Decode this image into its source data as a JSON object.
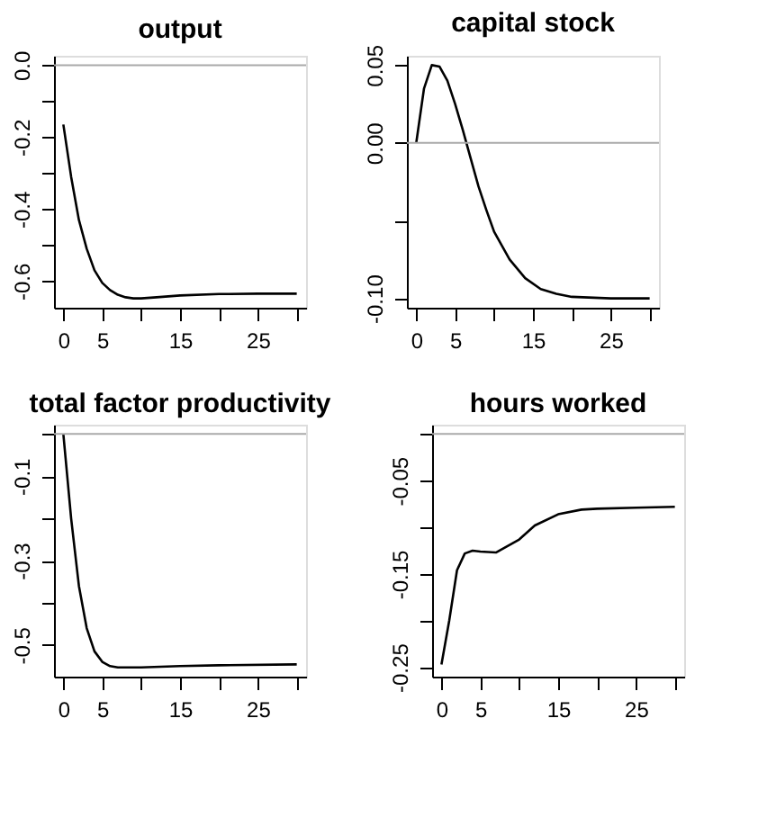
{
  "chart_data": [
    {
      "type": "line",
      "title": "output",
      "x": [
        0,
        1,
        2,
        3,
        4,
        5,
        6,
        7,
        8,
        9,
        10,
        12,
        15,
        20,
        25,
        30
      ],
      "series": [
        {
          "color": "#000000",
          "values": [
            -0.165,
            -0.31,
            -0.43,
            -0.51,
            -0.57,
            -0.605,
            -0.625,
            -0.638,
            -0.645,
            -0.648,
            -0.648,
            -0.645,
            -0.64,
            -0.636,
            -0.635,
            -0.635
          ]
        }
      ],
      "xlim": [
        -1.2,
        31.2
      ],
      "xticks": [
        0,
        5,
        {
          "value": 10,
          "label": null
        },
        15,
        {
          "value": 20,
          "label": null
        },
        25,
        {
          "value": 30,
          "label": null
        }
      ],
      "ylim": [
        -0.674,
        0.026
      ],
      "yticks": [
        {
          "value": -0.6,
          "label": "-0.6"
        },
        {
          "value": -0.5,
          "label": null
        },
        {
          "value": -0.4,
          "label": "-0.4"
        },
        {
          "value": -0.3,
          "label": null
        },
        {
          "value": -0.2,
          "label": "-0.2"
        },
        {
          "value": -0.1,
          "label": null
        },
        {
          "value": 0,
          "label": "0.0"
        }
      ],
      "ref_lines": [
        {
          "axis": "y",
          "value": 0,
          "color": "#aaaaaa"
        }
      ],
      "grid": false,
      "marker": "none",
      "line_style": "solid"
    },
    {
      "type": "line",
      "title": "capital stock",
      "x": [
        0,
        1,
        2,
        3,
        4,
        5,
        6,
        7,
        8,
        9,
        10,
        12,
        14,
        16,
        18,
        20,
        25,
        30
      ],
      "series": [
        {
          "color": "#000000",
          "values": [
            0,
            0.035,
            0.05,
            0.049,
            0.04,
            0.025,
            0.008,
            -0.01,
            -0.028,
            -0.043,
            -0.057,
            -0.075,
            -0.087,
            -0.094,
            -0.097,
            -0.099,
            -0.1,
            -0.1
          ]
        }
      ],
      "xlim": [
        -1.2,
        31.2
      ],
      "xticks": [
        0,
        5,
        {
          "value": 10,
          "label": null
        },
        15,
        {
          "value": 20,
          "label": null
        },
        25,
        {
          "value": 30,
          "label": null
        }
      ],
      "ylim": [
        -0.106,
        0.056
      ],
      "yticks": [
        {
          "value": -0.1,
          "label": "-0.10"
        },
        {
          "value": -0.05,
          "label": null
        },
        {
          "value": 0,
          "label": "0.00"
        },
        {
          "value": 0.05,
          "label": "0.05"
        }
      ],
      "ref_lines": [
        {
          "axis": "y",
          "value": 0,
          "color": "#aaaaaa"
        }
      ],
      "grid": false,
      "marker": "none",
      "line_style": "solid"
    },
    {
      "type": "line",
      "title": "total factor productivity",
      "x": [
        0,
        1,
        2,
        3,
        4,
        5,
        6,
        7,
        10,
        15,
        20,
        30
      ],
      "series": [
        {
          "color": "#000000",
          "values": [
            0,
            -0.2,
            -0.36,
            -0.46,
            -0.515,
            -0.54,
            -0.55,
            -0.553,
            -0.553,
            -0.55,
            -0.548,
            -0.546
          ]
        }
      ],
      "xlim": [
        -1.2,
        31.2
      ],
      "xticks": [
        0,
        5,
        {
          "value": 10,
          "label": null
        },
        15,
        {
          "value": 20,
          "label": null
        },
        25,
        {
          "value": 30,
          "label": null
        }
      ],
      "ylim": [
        -0.575,
        0.022
      ],
      "yticks": [
        {
          "value": -0.5,
          "label": "-0.5"
        },
        {
          "value": -0.4,
          "label": null
        },
        {
          "value": -0.3,
          "label": "-0.3"
        },
        {
          "value": -0.2,
          "label": null
        },
        {
          "value": -0.1,
          "label": "-0.1"
        },
        {
          "value": 0,
          "label": null
        }
      ],
      "ref_lines": [
        {
          "axis": "y",
          "value": 0,
          "color": "#aaaaaa"
        }
      ],
      "grid": false,
      "marker": "none",
      "line_style": "solid"
    },
    {
      "type": "line",
      "title": "hours worked",
      "x": [
        0,
        1,
        2,
        3,
        4,
        5,
        7,
        10,
        12,
        15,
        18,
        20,
        25,
        30
      ],
      "series": [
        {
          "color": "#000000",
          "values": [
            -0.247,
            -0.2,
            -0.146,
            -0.128,
            -0.125,
            -0.126,
            -0.127,
            -0.113,
            -0.098,
            -0.086,
            -0.081,
            -0.08,
            -0.079,
            -0.078
          ]
        }
      ],
      "xlim": [
        -1.2,
        31.2
      ],
      "xticks": [
        0,
        5,
        {
          "value": 10,
          "label": null
        },
        15,
        {
          "value": 20,
          "label": null
        },
        25,
        {
          "value": 30,
          "label": null
        }
      ],
      "ylim": [
        -0.26,
        0.01
      ],
      "yticks": [
        {
          "value": -0.25,
          "label": "-0.25"
        },
        {
          "value": -0.2,
          "label": null
        },
        {
          "value": -0.15,
          "label": "-0.15"
        },
        {
          "value": -0.1,
          "label": null
        },
        {
          "value": -0.05,
          "label": "-0.05"
        },
        {
          "value": 0,
          "label": null
        }
      ],
      "ref_lines": [
        {
          "axis": "y",
          "value": 0,
          "color": "#aaaaaa"
        }
      ],
      "grid": false,
      "marker": "none",
      "line_style": "solid"
    }
  ]
}
